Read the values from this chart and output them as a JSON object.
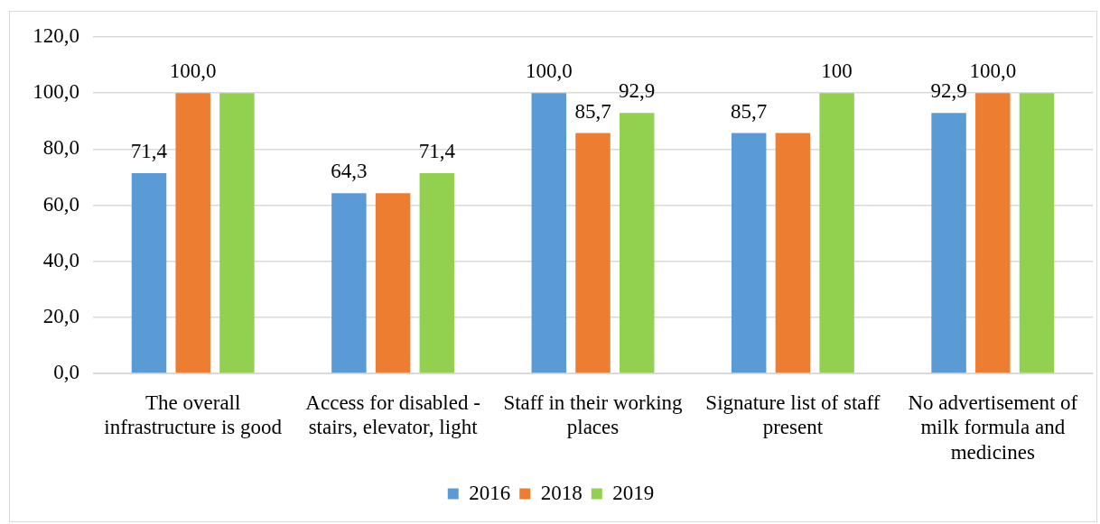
{
  "chart_data": {
    "type": "bar",
    "categories": [
      "The overall infrastructure is good",
      "Access for disabled - stairs, elevator, light",
      "Staff in their working places",
      "Signature list of staff present",
      "No advertisement of milk formula and medicines"
    ],
    "series": [
      {
        "name": "2016",
        "color": "#5b9bd5",
        "values": [
          71.4,
          64.3,
          100,
          85.7,
          92.9
        ],
        "value_labels": [
          "71,4",
          "64,3",
          "100,0",
          "85,7",
          "92,9"
        ]
      },
      {
        "name": "2018",
        "color": "#ed7d31",
        "values": [
          100,
          64.3,
          85.7,
          85.7,
          100
        ],
        "value_labels": [
          "100,0",
          null,
          "85,7",
          null,
          "100,0"
        ]
      },
      {
        "name": "2019",
        "color": "#92d050",
        "values": [
          100,
          71.4,
          92.9,
          100,
          100
        ],
        "value_labels": [
          null,
          "71,4",
          "92,9",
          "100",
          null
        ]
      }
    ],
    "ylim": [
      0,
      120
    ],
    "yticks": [
      {
        "value": 0,
        "label": "0,0"
      },
      {
        "value": 20,
        "label": "20,0"
      },
      {
        "value": 40,
        "label": "40,0"
      },
      {
        "value": 60,
        "label": "60,0"
      },
      {
        "value": 80,
        "label": "80,0"
      },
      {
        "value": 100,
        "label": "100,0"
      },
      {
        "value": 120,
        "label": "120,0"
      }
    ],
    "grid": "y",
    "legend": "bottom"
  }
}
